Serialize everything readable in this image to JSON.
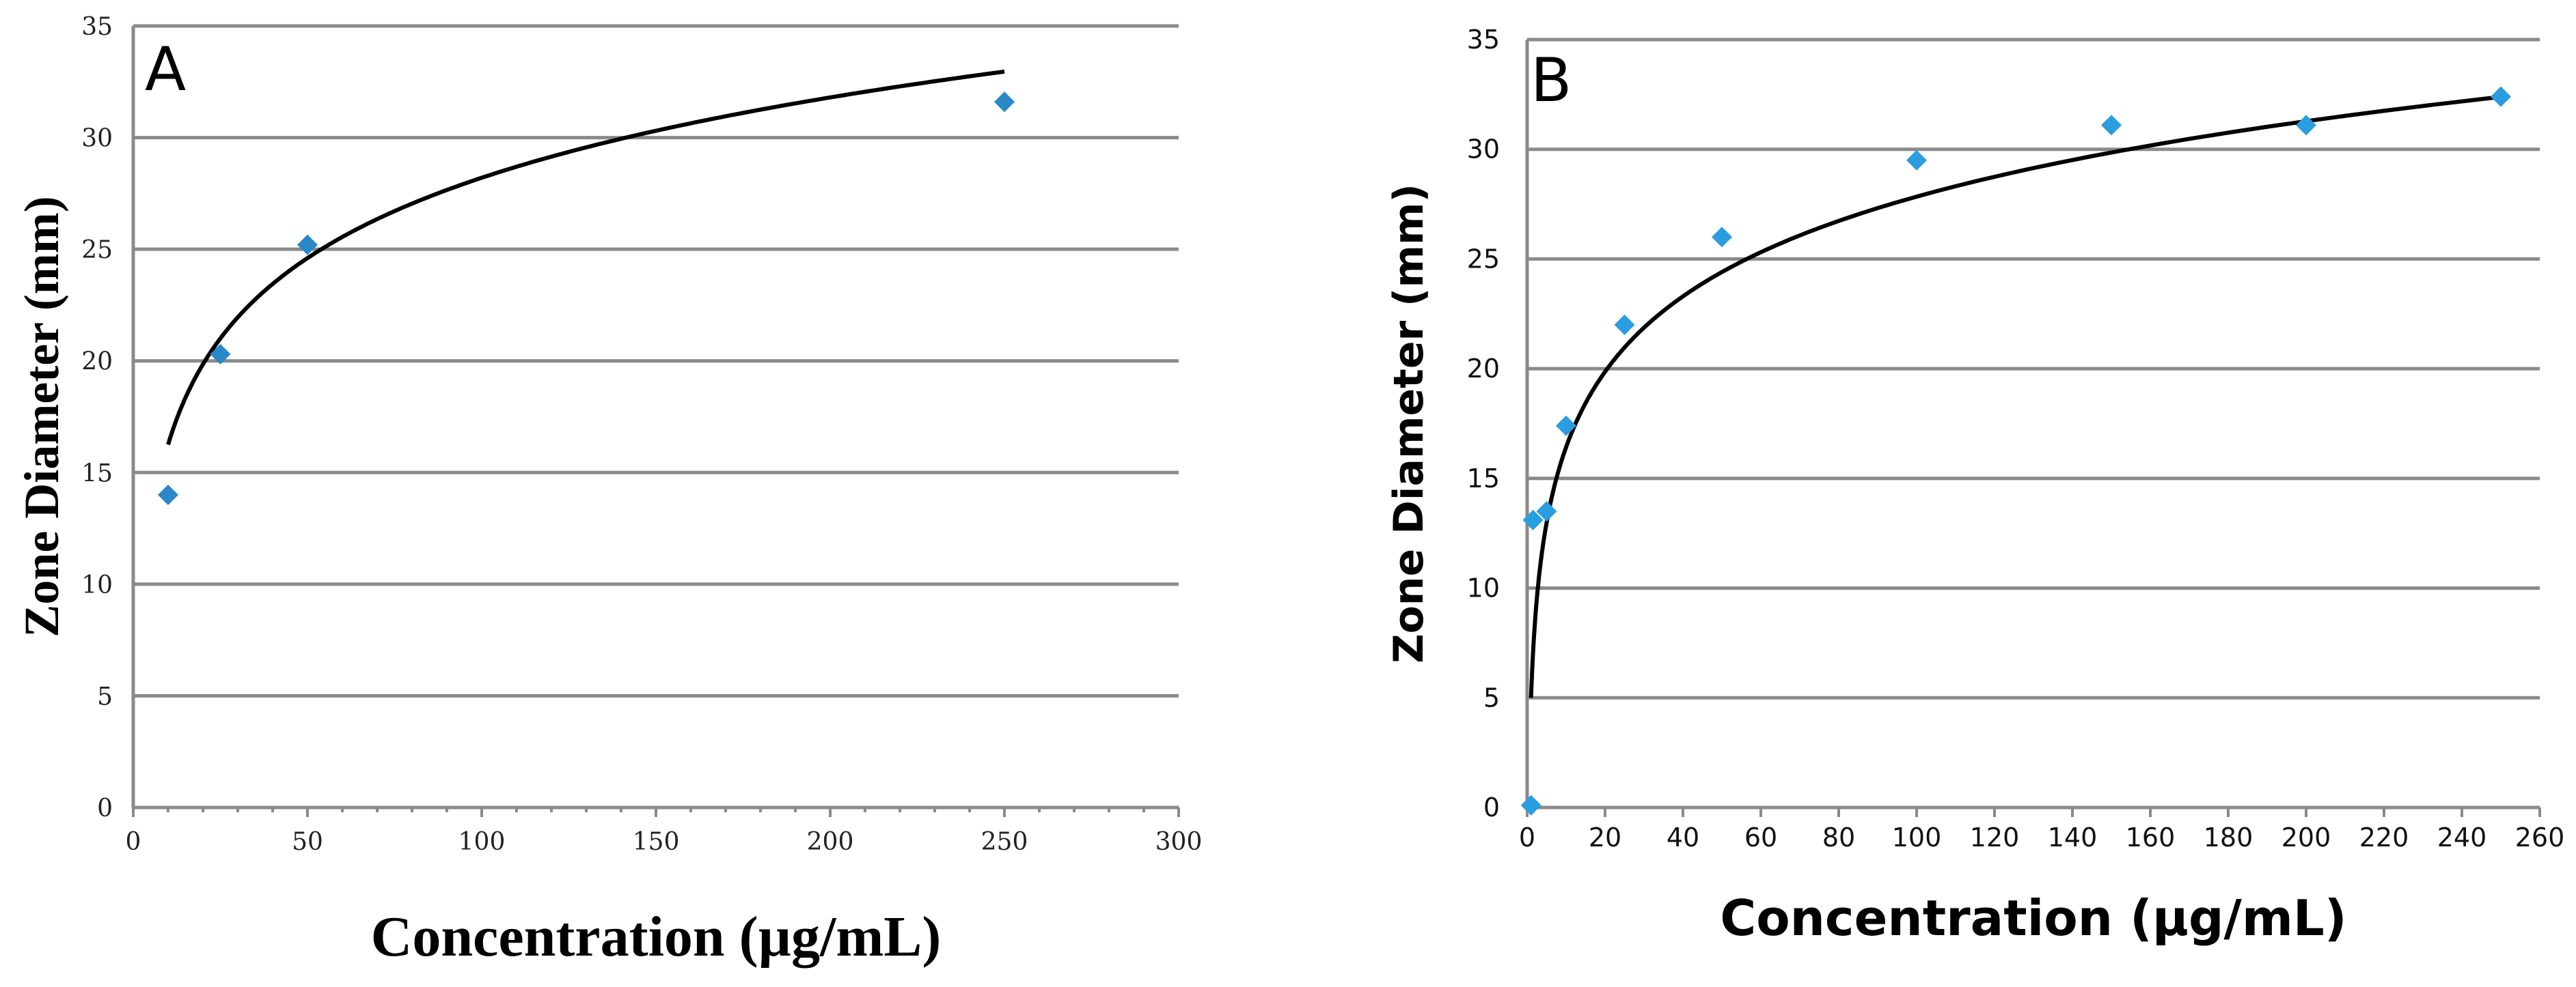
{
  "chart_data": [
    {
      "type": "scatter",
      "panel_label": "A",
      "xlabel": "Concentration (µg/mL)",
      "ylabel": "Zone Diameter (mm)",
      "xlim": [
        0,
        300
      ],
      "ylim": [
        0,
        35
      ],
      "x_ticks": [
        0,
        50,
        100,
        150,
        200,
        250,
        300
      ],
      "y_ticks": [
        0,
        5,
        10,
        15,
        20,
        25,
        30,
        35
      ],
      "grid": true,
      "marker_color": "#2a87c8",
      "series": [
        {
          "x": [
            10,
            25,
            50,
            250
          ],
          "y": [
            14.0,
            20.3,
            25.2,
            31.6
          ]
        }
      ],
      "trendline": {
        "type": "logarithmic",
        "a": 4.3,
        "b": 5.19,
        "x_range": [
          10,
          250
        ]
      }
    },
    {
      "type": "scatter",
      "panel_label": "B",
      "xlabel": "Concentration (µg/mL)",
      "ylabel": "Zone Diameter (mm)",
      "xlim": [
        0,
        260
      ],
      "ylim": [
        0,
        35
      ],
      "x_ticks": [
        0,
        20,
        40,
        60,
        80,
        100,
        120,
        140,
        160,
        180,
        200,
        220,
        240,
        260
      ],
      "y_ticks": [
        0,
        5,
        10,
        15,
        20,
        25,
        30,
        35
      ],
      "grid": true,
      "marker_color": "#2a9de0",
      "series": [
        {
          "x": [
            1,
            1.5,
            5,
            10,
            25,
            50,
            100,
            150,
            200,
            250
          ],
          "y": [
            0.1,
            13.1,
            13.5,
            17.4,
            22.0,
            26.0,
            29.5,
            31.1,
            31.1,
            32.4
          ]
        }
      ],
      "trendline": {
        "type": "logarithmic",
        "a": 5.0,
        "b": 4.96,
        "x_range": [
          1,
          250
        ]
      }
    }
  ]
}
